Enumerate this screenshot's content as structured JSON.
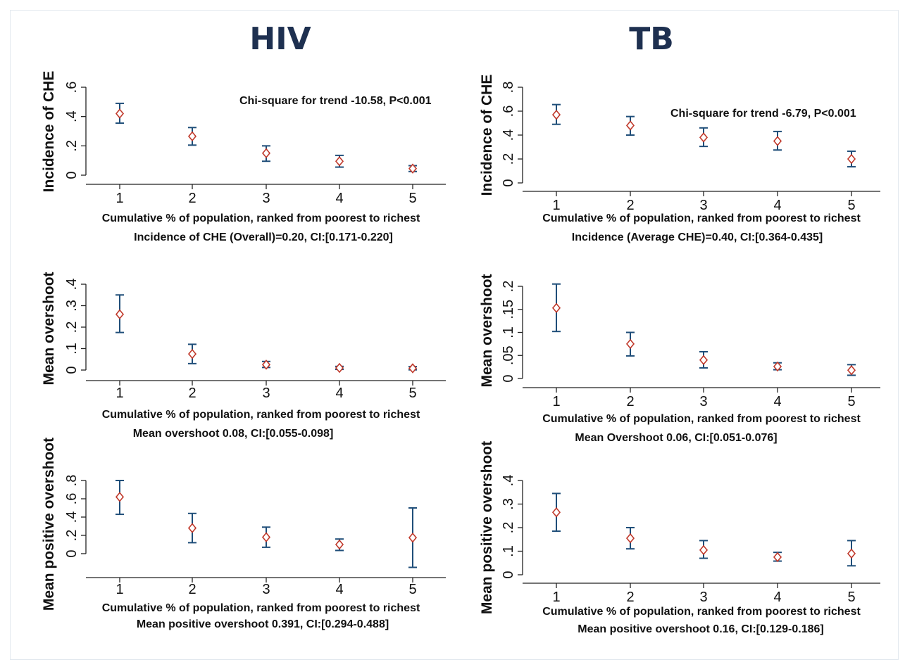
{
  "titles": {
    "left": "HIV",
    "right": "TB"
  },
  "colors": {
    "axis": "#222222",
    "errorbar": "#1f4e79",
    "marker": "#c0392b",
    "title": "#1e3050"
  },
  "chart_data": [
    {
      "type": "scatter",
      "panel": "HIV-1",
      "x": [
        1,
        2,
        3,
        4,
        5
      ],
      "y": [
        0.42,
        0.265,
        0.15,
        0.095,
        0.045
      ],
      "ci_low": [
        0.355,
        0.205,
        0.095,
        0.055,
        0.025
      ],
      "ci_high": [
        0.49,
        0.325,
        0.2,
        0.135,
        0.065
      ],
      "xticks": [
        "1",
        "2",
        "3",
        "4",
        "5"
      ],
      "yticks": [
        "0",
        ".2",
        ".4",
        ".6"
      ],
      "ylim": [
        0,
        0.6
      ],
      "ylabel": "Incidence of CHE",
      "xlabel": "Cumulative % of population, ranked from poorest to richest",
      "caption": "Incidence of CHE (Overall)=0.20, CI:[0.171-0.220]",
      "annotation": "Chi-square for trend -10.58, P<0.001"
    },
    {
      "type": "scatter",
      "panel": "TB-1",
      "x": [
        1,
        2,
        3,
        4,
        5
      ],
      "y": [
        0.57,
        0.48,
        0.38,
        0.35,
        0.2
      ],
      "ci_low": [
        0.49,
        0.4,
        0.305,
        0.275,
        0.135
      ],
      "ci_high": [
        0.655,
        0.555,
        0.46,
        0.43,
        0.265
      ],
      "xticks": [
        "1",
        "2",
        "3",
        "4",
        "5"
      ],
      "yticks": [
        "0",
        ".2",
        ".4",
        ".6",
        ".8"
      ],
      "ylim": [
        0,
        0.8
      ],
      "ylabel": "Incidence of CHE",
      "xlabel": "Cumulative % of population, ranked from poorest to richest",
      "caption": "Incidence (Average CHE)=0.40, CI:[0.364-0.435]",
      "annotation": "Chi-square for trend -6.79, P<0.001"
    },
    {
      "type": "scatter",
      "panel": "HIV-2",
      "x": [
        1,
        2,
        3,
        4,
        5
      ],
      "y": [
        0.26,
        0.075,
        0.025,
        0.01,
        0.008
      ],
      "ci_low": [
        0.175,
        0.03,
        0.012,
        0.003,
        0.001
      ],
      "ci_high": [
        0.35,
        0.12,
        0.04,
        0.017,
        0.016
      ],
      "xticks": [
        "1",
        "2",
        "3",
        "4",
        "5"
      ],
      "yticks": [
        "0",
        ".1",
        ".2",
        ".3",
        ".4"
      ],
      "ylim": [
        0,
        0.4
      ],
      "ylabel": "Mean overshoot",
      "xlabel": "Cumulative % of population, ranked from poorest to richest",
      "caption": "Mean overshoot 0.08, CI:[0.055-0.098]"
    },
    {
      "type": "scatter",
      "panel": "TB-2",
      "x": [
        1,
        2,
        3,
        4,
        5
      ],
      "y": [
        0.153,
        0.075,
        0.04,
        0.026,
        0.018
      ],
      "ci_low": [
        0.102,
        0.049,
        0.023,
        0.019,
        0.007
      ],
      "ci_high": [
        0.205,
        0.1,
        0.058,
        0.034,
        0.03
      ],
      "xticks": [
        "1",
        "2",
        "3",
        "4",
        "5"
      ],
      "yticks": [
        "0",
        ".05",
        ".1",
        ".15",
        ".2"
      ],
      "ylim": [
        0,
        0.2
      ],
      "ylabel": "Mean overshoot",
      "xlabel": "Cumulative % of population, ranked from poorest to richest",
      "caption": "Mean Overshoot 0.06, CI:[0.051-0.076]"
    },
    {
      "type": "scatter",
      "panel": "HIV-3",
      "x": [
        1,
        2,
        3,
        4,
        5
      ],
      "y": [
        0.62,
        0.28,
        0.18,
        0.1,
        0.175
      ],
      "ci_low": [
        0.43,
        0.12,
        0.07,
        0.035,
        -0.15
      ],
      "ci_high": [
        0.8,
        0.44,
        0.29,
        0.16,
        0.5
      ],
      "xticks": [
        "1",
        "2",
        "3",
        "4",
        "5"
      ],
      "yticks": [
        "0",
        ".2",
        ".4",
        ".6",
        ".8"
      ],
      "ylim": [
        -0.2,
        0.8
      ],
      "ylabel": "Mean positive overshoot",
      "xlabel": "Cumulative % of population, ranked from poorest to richest",
      "caption": "Mean positive overshoot 0.391, CI:[0.294-0.488]"
    },
    {
      "type": "scatter",
      "panel": "TB-3",
      "x": [
        1,
        2,
        3,
        4,
        5
      ],
      "y": [
        0.265,
        0.155,
        0.105,
        0.075,
        0.09
      ],
      "ci_low": [
        0.185,
        0.11,
        0.07,
        0.058,
        0.038
      ],
      "ci_high": [
        0.345,
        0.2,
        0.145,
        0.095,
        0.145
      ],
      "xticks": [
        "1",
        "2",
        "3",
        "4",
        "5"
      ],
      "yticks": [
        "0",
        ".1",
        ".2",
        ".3",
        ".4"
      ],
      "ylim": [
        0,
        0.4
      ],
      "ylabel": "Mean positive overshoot",
      "xlabel": "Cumulative % of population, ranked from poorest to richest",
      "caption": "Mean positive overshoot 0.16, CI:[0.129-0.186]"
    }
  ]
}
